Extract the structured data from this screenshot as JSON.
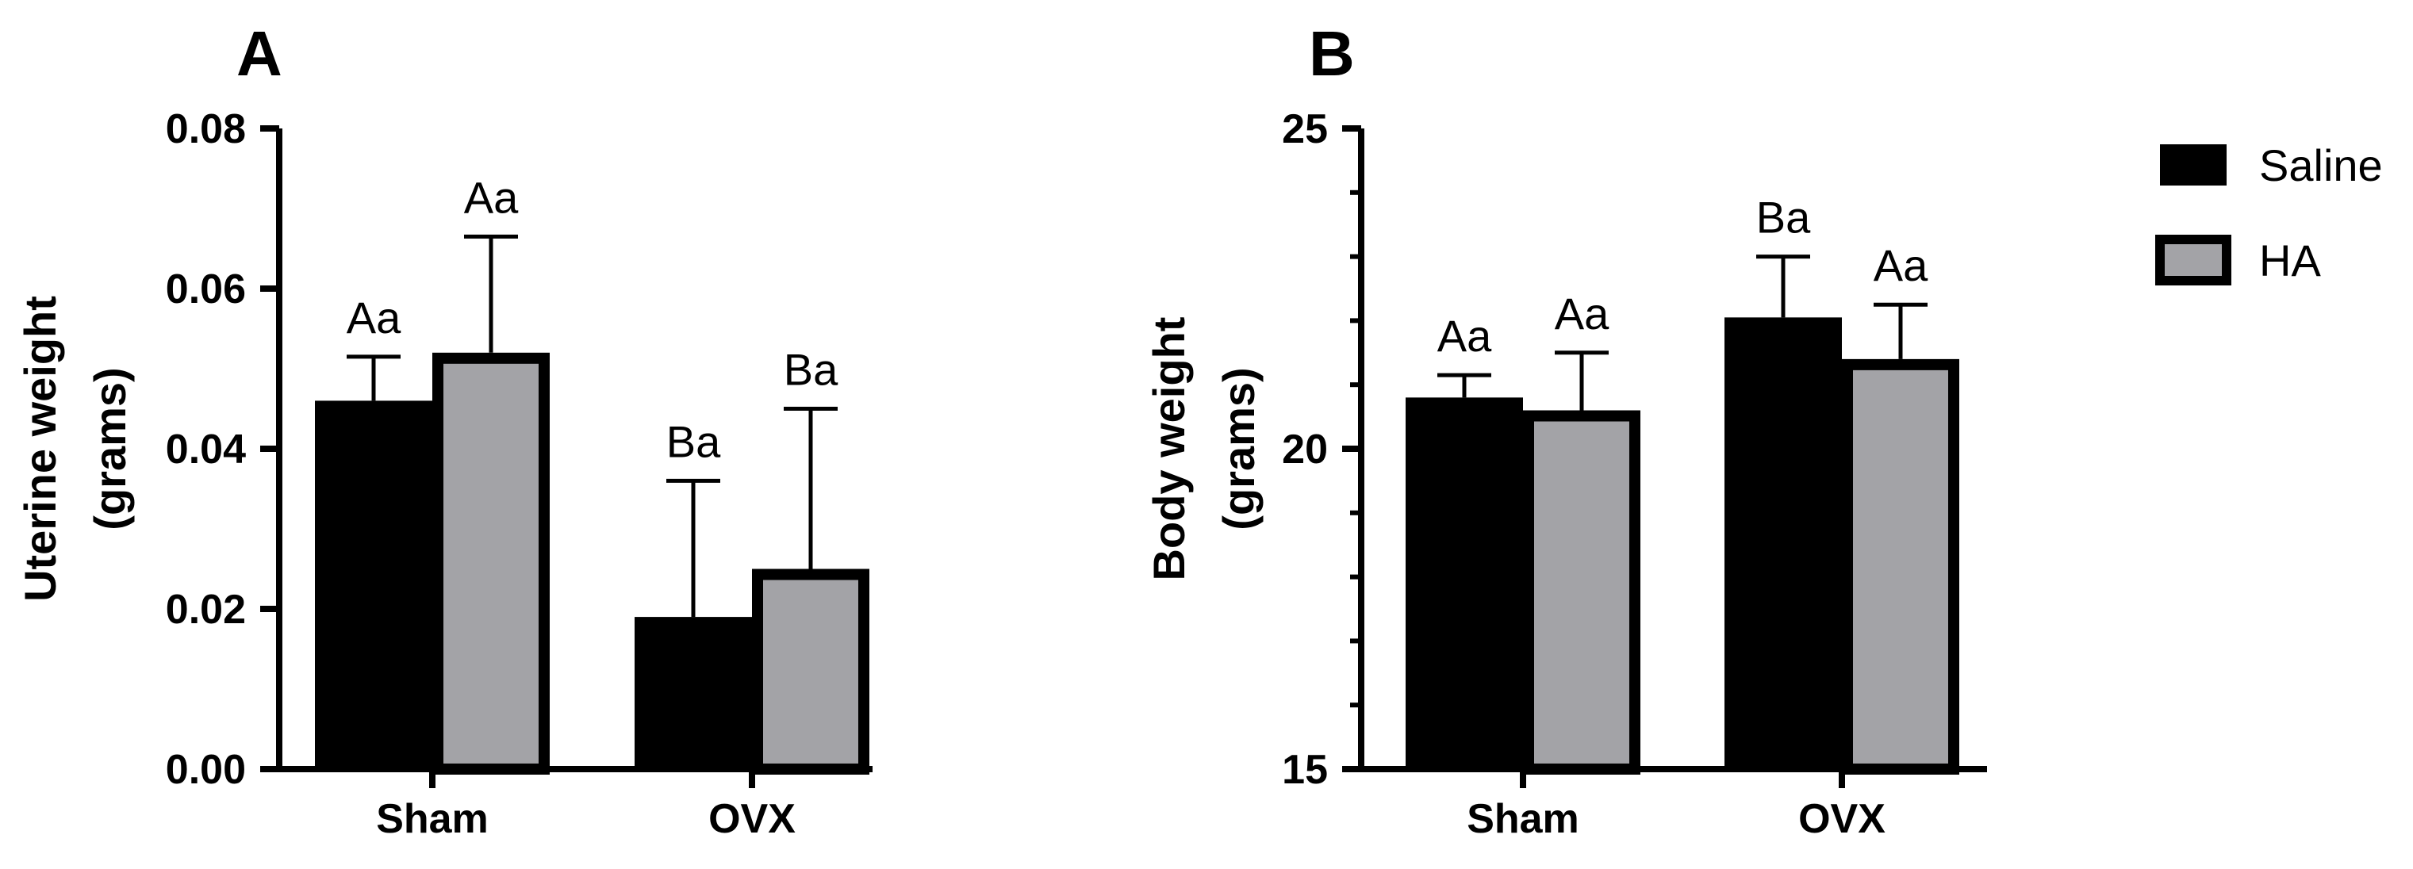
{
  "legend": {
    "entries": [
      {
        "label": "Saline",
        "color": "#000000"
      },
      {
        "label": "HA",
        "color": "#a3a3a7"
      }
    ]
  },
  "chart_data": [
    {
      "panel": "A",
      "type": "bar",
      "title": "",
      "xlabel": "",
      "ylabel_lines": [
        "Uterine weight",
        "(grams)"
      ],
      "categories": [
        "Sham",
        "OVX"
      ],
      "ylim": [
        0,
        0.08
      ],
      "yticks": [
        0.0,
        0.02,
        0.04,
        0.06,
        0.08
      ],
      "ytick_labels": [
        "0.00",
        "0.02",
        "0.04",
        "0.06",
        "0.08"
      ],
      "minor_ticks": [],
      "series": [
        {
          "name": "Saline",
          "color": "#000000",
          "values": [
            0.046,
            0.019
          ],
          "errors": [
            0.0055,
            0.017
          ],
          "labels": [
            "Aa",
            "Ba"
          ]
        },
        {
          "name": "HA",
          "color": "#a3a3a7",
          "values": [
            0.052,
            0.025
          ],
          "errors": [
            0.0145,
            0.02
          ],
          "labels": [
            "Aa",
            "Ba"
          ]
        }
      ]
    },
    {
      "panel": "B",
      "type": "bar",
      "title": "",
      "xlabel": "",
      "ylabel_lines": [
        "Body weight",
        "(grams)"
      ],
      "categories": [
        "Sham",
        "OVX"
      ],
      "ylim": [
        15,
        25
      ],
      "yticks": [
        15,
        20,
        25
      ],
      "ytick_labels": [
        "15",
        "20",
        "25"
      ],
      "minor_ticks": [
        16,
        17,
        18,
        19,
        21,
        22,
        23,
        24
      ],
      "series": [
        {
          "name": "Saline",
          "color": "#000000",
          "values": [
            20.8,
            22.05
          ],
          "errors": [
            0.35,
            0.95
          ],
          "labels": [
            "Aa",
            "Ba"
          ]
        },
        {
          "name": "HA",
          "color": "#a3a3a7",
          "values": [
            20.6,
            21.4
          ],
          "errors": [
            0.9,
            0.85
          ],
          "labels": [
            "Aa",
            "Aa"
          ]
        }
      ]
    }
  ]
}
